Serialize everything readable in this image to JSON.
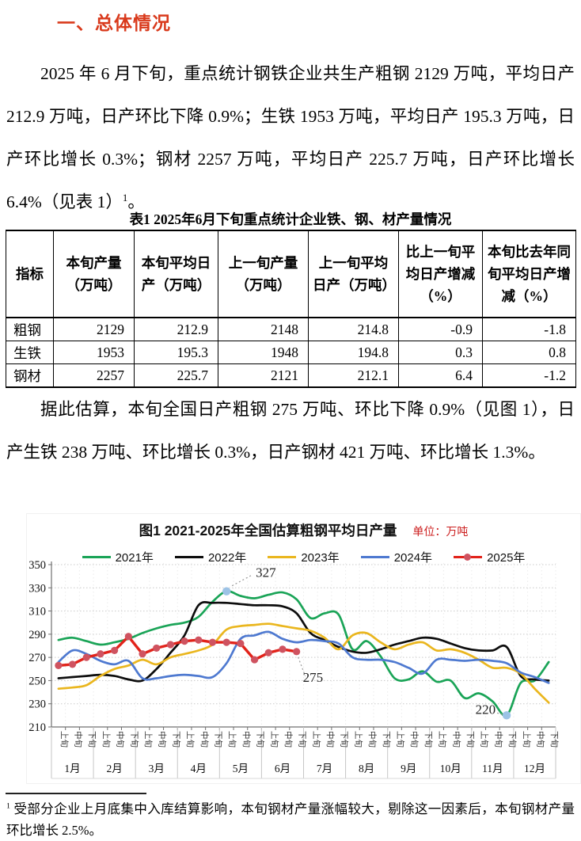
{
  "colors": {
    "heading": "#d93a1c",
    "unit_label": "#cc1f1f",
    "highlight_point": "#9dc3e6"
  },
  "heading": "一、总体情况",
  "intro": {
    "body": "2025 年 6 月下旬，重点统计钢铁企业共生产粗钢 2129 万吨，平均日产 212.9 万吨，日产环比下降 0.9%；生铁 1953 万吨，平均日产 195.3 万吨，日产环比增长 0.3%；钢材 2257 万吨，平均日产 225.7 万吨，日产环比增长 6.4%（见表 1）",
    "sup": "1",
    "tail": "。"
  },
  "estimate_paragraph": "据此估算，本旬全国日产粗钢 275 万吨、环比下降 0.9%（见图 1），日产生铁 238 万吨、环比增长 0.3%，日产钢材 421 万吨、环比增长 1.3%。",
  "table": {
    "caption": "表1  2025年6月下旬重点统计企业铁、钢、材产量情况",
    "headers": [
      "指标",
      "本旬产量（万吨）",
      "本旬平均日产（万吨）",
      "上一旬产量（万吨）",
      "上一旬平均日产（万吨）",
      "比上一旬平均日产增减（%）",
      "本旬比去年同旬平均日产增减（%）"
    ],
    "rows": [
      {
        "label": "粗钢",
        "values": [
          "2129",
          "212.9",
          "2148",
          "214.8",
          "-0.9",
          "-1.8"
        ]
      },
      {
        "label": "生铁",
        "values": [
          "1953",
          "195.3",
          "1948",
          "194.8",
          "0.3",
          "0.8"
        ]
      },
      {
        "label": "钢材",
        "values": [
          "2257",
          "225.7",
          "2121",
          "212.1",
          "6.4",
          "-1.2"
        ]
      }
    ]
  },
  "chart_data": {
    "type": "line",
    "title": "图1  2021-2025年全国估算粗钢平均日产量",
    "unit_label": "单位：万吨",
    "ylim": [
      210,
      350
    ],
    "ytick_step": 20,
    "grid": true,
    "legend_position": "top",
    "months": [
      "1月",
      "2月",
      "3月",
      "4月",
      "5月",
      "6月",
      "7月",
      "8月",
      "9月",
      "10月",
      "11月",
      "12月"
    ],
    "periods": [
      "上旬",
      "中旬",
      "下旬"
    ],
    "series": [
      {
        "name": "2021年",
        "color": "#1aa457",
        "values": [
          285,
          287,
          284,
          281,
          283,
          286,
          291,
          295,
          298,
          300,
          305,
          318,
          327,
          323,
          321,
          324,
          326,
          320,
          304,
          308,
          307,
          277,
          284,
          271,
          252,
          251,
          258,
          249,
          250,
          235,
          239,
          232,
          220,
          248,
          250,
          266
        ]
      },
      {
        "name": "2022年",
        "color": "#0d0d0d",
        "values": [
          252,
          253,
          254,
          255,
          254,
          251,
          250,
          260,
          274,
          289,
          315,
          317,
          317,
          316,
          315,
          315,
          314,
          308,
          291,
          285,
          279,
          275,
          274,
          277,
          281,
          284,
          287,
          286,
          282,
          278,
          276,
          276,
          279,
          254,
          251,
          250
        ]
      },
      {
        "name": "2023年",
        "color": "#eab61e",
        "values": [
          243,
          244,
          246,
          254,
          260,
          263,
          268,
          264,
          270,
          273,
          276,
          281,
          294,
          297,
          298,
          299,
          297,
          295,
          293,
          287,
          277,
          289,
          291,
          283,
          277,
          281,
          283,
          276,
          277,
          274,
          268,
          261,
          261,
          256,
          243,
          231
        ]
      },
      {
        "name": "2024年",
        "color": "#4e79d0",
        "values": [
          266,
          276,
          273,
          267,
          264,
          267,
          252,
          252,
          254,
          255,
          254,
          253,
          265,
          286,
          289,
          292,
          286,
          283,
          285,
          284,
          282,
          270,
          268,
          268,
          266,
          261,
          256,
          268,
          268,
          267,
          268,
          267,
          265,
          257,
          253,
          248
        ]
      },
      {
        "name": "2025年",
        "color": "#e2231a",
        "marker": true,
        "marker_color": "#cf5360",
        "values": [
          263,
          264,
          270,
          273,
          276,
          288,
          273,
          278,
          281,
          284,
          285,
          283,
          283,
          282,
          268,
          274,
          277,
          275
        ]
      }
    ],
    "annotations": [
      {
        "text": "327",
        "series": "2021年",
        "index": 12,
        "highlight": true
      },
      {
        "text": "275",
        "series": "2025年",
        "index": 17,
        "highlight": false
      },
      {
        "text": "220",
        "series": "2021年",
        "index": 32,
        "highlight": true
      }
    ]
  },
  "footnote": {
    "sup": "1",
    "text": "受部分企业上月底集中入库结算影响，本旬钢材产量涨幅较大，剔除这一因素后，本旬钢材产量环比增长 2.5%。"
  }
}
